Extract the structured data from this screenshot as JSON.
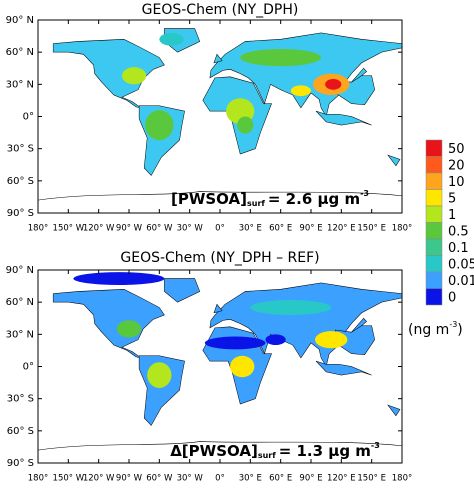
{
  "panels": [
    {
      "title": "GEOS-Chem (NY_DPH)",
      "annotation": {
        "main": "[PWSOA]",
        "sub": "surf",
        "value": "= 2.6 µg m",
        "sup": "-3"
      }
    },
    {
      "title": "GEOS-Chem (NY_DPH – REF)",
      "annotation": {
        "main": "Δ[PWSOA]",
        "sub": "surf",
        "value": "= 1.3 µg m",
        "sup": "-3"
      }
    }
  ],
  "lat_labels": [
    "90° N",
    "60° N",
    "30° N",
    "0°",
    "30° S",
    "60° S",
    "90° S"
  ],
  "lon_labels": [
    "180°",
    "150° W",
    "120° W",
    "90° W",
    "60° W",
    "30° W",
    "0°",
    "30° E",
    "60° E",
    "90° E",
    "120° E",
    "150° E",
    "180°"
  ],
  "colorbar": {
    "labels": [
      50,
      20,
      10,
      5,
      1,
      0.5,
      0.1,
      0.05,
      0.01,
      0
    ],
    "colors": [
      "#e8141a",
      "#ff5a1e",
      "#ffa41e",
      "#ffe600",
      "#b4e61e",
      "#5ac83c",
      "#3cc88c",
      "#28c8c8",
      "#3ca0ff",
      "#0a14e6"
    ]
  },
  "unit": {
    "main": "(ng m",
    "sup": "-3",
    "close": ")"
  }
}
